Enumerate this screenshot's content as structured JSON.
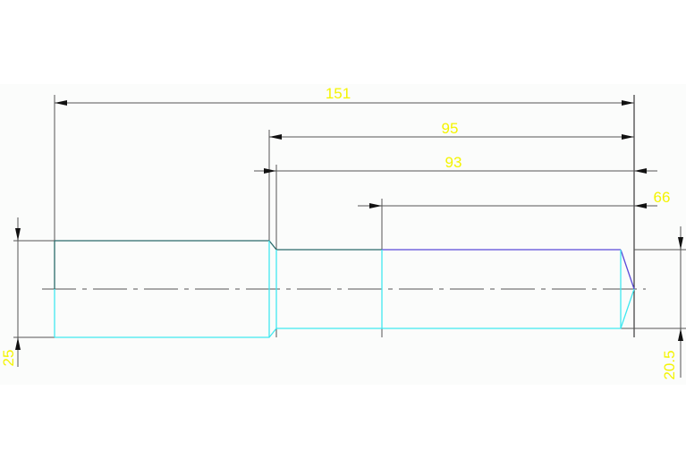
{
  "drawing": {
    "colors": {
      "background": "#fbfcfb",
      "dimension": "#555555",
      "outline_dark": "#2a6a6a",
      "outline_cyan": "#40e8f0",
      "outline_blue": "#5a4ad8",
      "text": "#f4f400"
    },
    "dimensions": {
      "overall_length": "151",
      "length_95": "95",
      "length_93": "93",
      "length_66": "66",
      "diameter_left": "25",
      "diameter_right": "20.5"
    }
  }
}
